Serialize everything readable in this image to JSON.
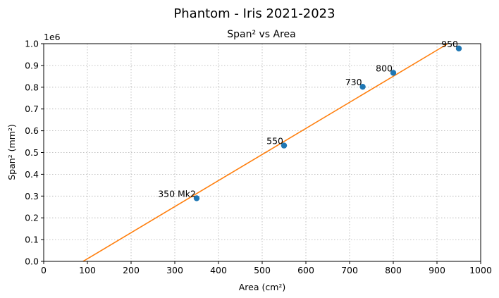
{
  "chart_data": {
    "type": "scatter",
    "suptitle": "Phantom - Iris 2021-2023",
    "title": "Span² vs Area",
    "xlabel": "Area (cm²)",
    "ylabel": "Span² (mm²)",
    "y_offset_label": "1e6",
    "xlim": [
      0,
      1000
    ],
    "ylim": [
      0,
      1000000
    ],
    "x_ticks": [
      0,
      100,
      200,
      300,
      400,
      500,
      600,
      700,
      800,
      900,
      1000
    ],
    "x_tick_labels": [
      "0",
      "100",
      "200",
      "300",
      "400",
      "500",
      "600",
      "700",
      "800",
      "900",
      "1000"
    ],
    "y_ticks": [
      0,
      100000,
      200000,
      300000,
      400000,
      500000,
      600000,
      700000,
      800000,
      900000,
      1000000
    ],
    "y_tick_labels": [
      "0.0",
      "0.1",
      "0.2",
      "0.3",
      "0.4",
      "0.5",
      "0.6",
      "0.7",
      "0.8",
      "0.9",
      "1.0"
    ],
    "grid": true,
    "points": [
      {
        "label": "350 Mk2",
        "x": 350,
        "y": 290000
      },
      {
        "label": "550",
        "x": 550,
        "y": 532000
      },
      {
        "label": "730",
        "x": 730,
        "y": 802000
      },
      {
        "label": "800",
        "x": 800,
        "y": 866000
      },
      {
        "label": "950",
        "x": 950,
        "y": 978000
      }
    ],
    "fit_line": {
      "x": [
        90,
        925
      ],
      "y": [
        0,
        1000000
      ]
    },
    "colors": {
      "points": "#1f77b4",
      "fit_line": "#ff7f0e"
    }
  }
}
